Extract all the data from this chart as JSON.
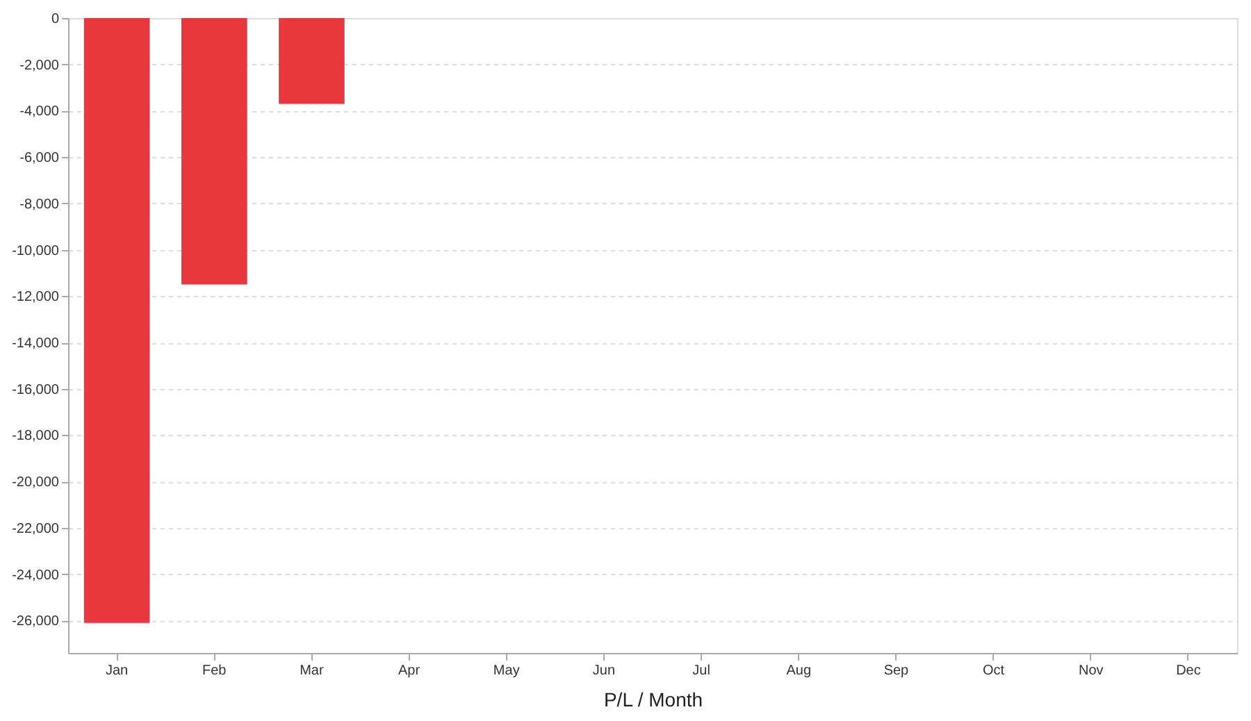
{
  "chart_data": {
    "type": "bar",
    "xlabel": "P/L / Month",
    "categories": [
      "Jan",
      "Feb",
      "Mar",
      "Apr",
      "May",
      "Jun",
      "Jul",
      "Aug",
      "Sep",
      "Oct",
      "Nov",
      "Dec"
    ],
    "values": [
      -26100,
      -11500,
      -3700,
      null,
      null,
      null,
      null,
      null,
      null,
      null,
      null,
      null
    ],
    "color": "#e8373d",
    "ylim": [
      -27400,
      0
    ],
    "yticks": [
      {
        "value": -26000,
        "label": "-26,000"
      },
      {
        "value": -24000,
        "label": "-24,000"
      },
      {
        "value": -22000,
        "label": "-22,000"
      },
      {
        "value": -20000,
        "label": "-20,000"
      },
      {
        "value": -18000,
        "label": "-18,000"
      },
      {
        "value": -16000,
        "label": "-16,000"
      },
      {
        "value": -14000,
        "label": "-14,000"
      },
      {
        "value": -12000,
        "label": "-12,000"
      },
      {
        "value": -10000,
        "label": "-10,000"
      },
      {
        "value": -8000,
        "label": "-8,000"
      },
      {
        "value": -6000,
        "label": "-6,000"
      },
      {
        "value": -4000,
        "label": "-4,000"
      },
      {
        "value": -2000,
        "label": "-2,000"
      },
      0
    ],
    "grid": "y",
    "legend": false
  }
}
